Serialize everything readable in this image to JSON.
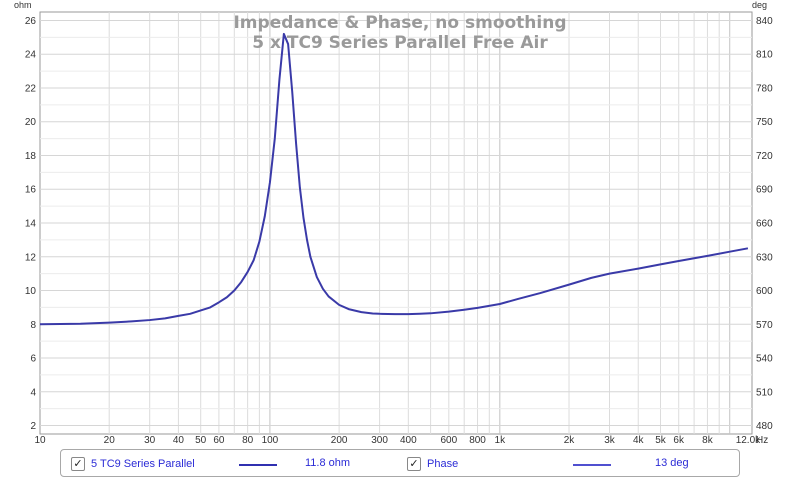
{
  "chart_data": {
    "type": "line",
    "title": "Impedance & Phase, no smoothing",
    "subtitle": "5 x TC9 Series Parallel Free Air",
    "y_left_unit": "ohm",
    "y_right_unit": "deg",
    "x_unit": "Hz",
    "x_scale": "log",
    "xlim": [
      10,
      12500
    ],
    "ylim_left": [
      1.5,
      26.5
    ],
    "ylim_right": [
      472.5,
      847.5
    ],
    "grid": true,
    "x_tick_labels": [
      "10",
      "20",
      "30",
      "40",
      "50",
      "60",
      "80",
      "100",
      "200",
      "300",
      "400",
      "600",
      "800",
      "1k",
      "2k",
      "3k",
      "4k",
      "5k",
      "6k",
      "8k",
      "12.0k"
    ],
    "y_left_tick_labels": [
      "2",
      "4",
      "6",
      "8",
      "10",
      "12",
      "14",
      "16",
      "18",
      "20",
      "22",
      "24",
      "26"
    ],
    "y_right_tick_labels": [
      "480",
      "510",
      "540",
      "570",
      "600",
      "630",
      "660",
      "690",
      "720",
      "750",
      "780",
      "810",
      "840"
    ],
    "series": [
      {
        "name": "5 TC9 Series Parallel",
        "axis": "left",
        "color": "#3a3aa8",
        "x": [
          10,
          15,
          20,
          25,
          30,
          35,
          40,
          45,
          50,
          55,
          60,
          65,
          70,
          75,
          80,
          85,
          90,
          95,
          100,
          105,
          110,
          115,
          120,
          125,
          130,
          135,
          140,
          145,
          150,
          160,
          170,
          180,
          200,
          220,
          250,
          280,
          300,
          350,
          400,
          450,
          500,
          600,
          700,
          800,
          1000,
          1200,
          1500,
          2000,
          2500,
          3000,
          4000,
          5000,
          6000,
          8000,
          10000,
          12000
        ],
        "values": [
          8.0,
          8.03,
          8.1,
          8.17,
          8.25,
          8.35,
          8.5,
          8.62,
          8.82,
          9.0,
          9.3,
          9.6,
          10.0,
          10.5,
          11.1,
          11.8,
          12.9,
          14.4,
          16.4,
          19.0,
          22.5,
          25.2,
          24.6,
          21.8,
          18.7,
          16.1,
          14.3,
          13.0,
          12.0,
          10.8,
          10.1,
          9.65,
          9.15,
          8.9,
          8.72,
          8.64,
          8.62,
          8.6,
          8.6,
          8.62,
          8.65,
          8.75,
          8.86,
          8.97,
          9.2,
          9.5,
          9.85,
          10.35,
          10.75,
          11.0,
          11.3,
          11.55,
          11.75,
          12.05,
          12.3,
          12.5
        ]
      },
      {
        "name": "Phase",
        "axis": "right",
        "color": "#5a5ad0",
        "x": [],
        "values": []
      }
    ]
  },
  "legend": {
    "item1": {
      "label": "5 TC9 Series Parallel",
      "value": "11.8 ohm",
      "checked": "✓",
      "line_color": "#2a2a9a"
    },
    "item2": {
      "label": "Phase",
      "value": "13 deg",
      "checked": "✓",
      "line_color": "#5050d0"
    }
  }
}
